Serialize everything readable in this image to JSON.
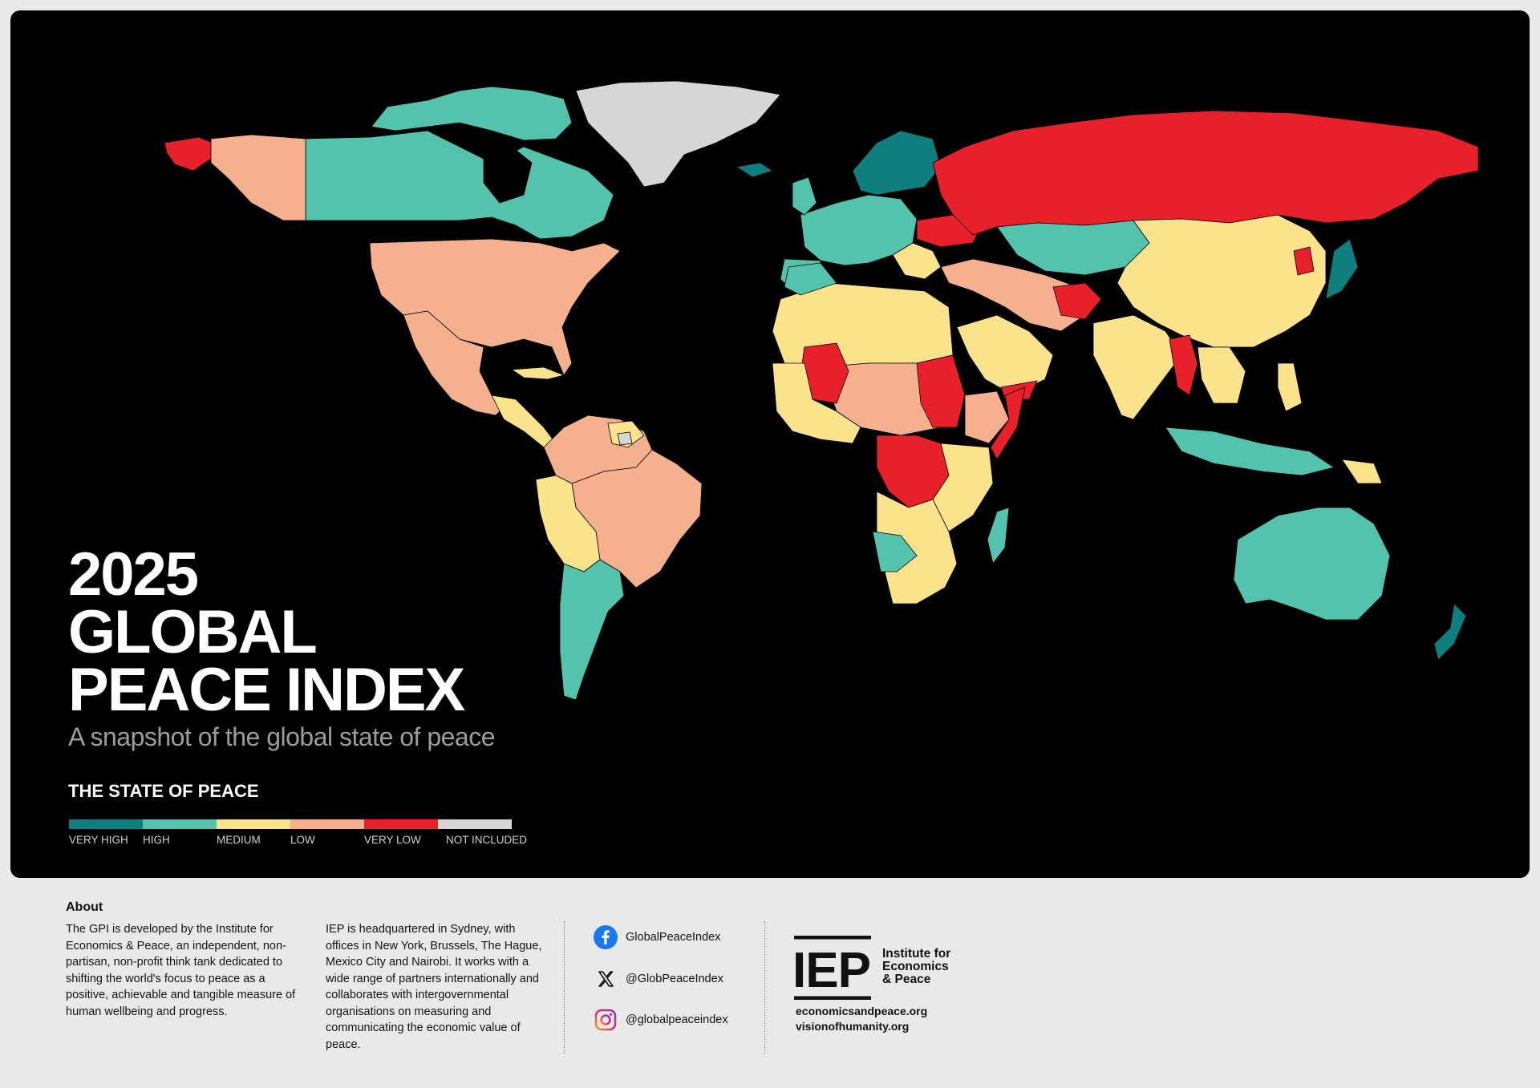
{
  "title": {
    "year": "2025",
    "line1": "GLOBAL",
    "line2": "PEACE INDEX",
    "subtitle": "A snapshot of the global state of peace"
  },
  "legend": {
    "title": "THE STATE OF PEACE",
    "items": [
      {
        "label": "VERY HIGH",
        "color": "#0f7e7e"
      },
      {
        "label": "HIGH",
        "color": "#53c3ae"
      },
      {
        "label": "MEDIUM",
        "color": "#fbe38c"
      },
      {
        "label": "LOW",
        "color": "#f5b18e"
      },
      {
        "label": "VERY LOW",
        "color": "#e8202a"
      },
      {
        "label": "NOT INCLUDED",
        "color": "#d6d6d6"
      }
    ]
  },
  "about": {
    "heading": "About",
    "paragraph1": "The GPI is developed by the Institute for Economics & Peace, an independent, non-partisan, non-profit think tank dedicated to shifting the world's focus to peace as a positive, achievable and tangible measure of human wellbeing and progress.",
    "paragraph2": "IEP is headquartered in Sydney, with offices in New York, Brussels, The Hague, Mexico City and Nairobi. It works with a wide range of partners internationally and collaborates with intergovernmental organisations on measuring and communicating the economic value of peace."
  },
  "social": [
    {
      "icon": "facebook-icon",
      "handle": "GlobalPeaceIndex"
    },
    {
      "icon": "x-icon",
      "handle": "@GlobPeaceIndex"
    },
    {
      "icon": "instagram-icon",
      "handle": "@globalpeaceindex"
    }
  ],
  "org": {
    "logo_text": "IEP",
    "name_line1": "Institute for",
    "name_line2": "Economics",
    "name_line3": "& Peace",
    "url1": "economicsandpeace.org",
    "url2": "visionofhumanity.org"
  }
}
